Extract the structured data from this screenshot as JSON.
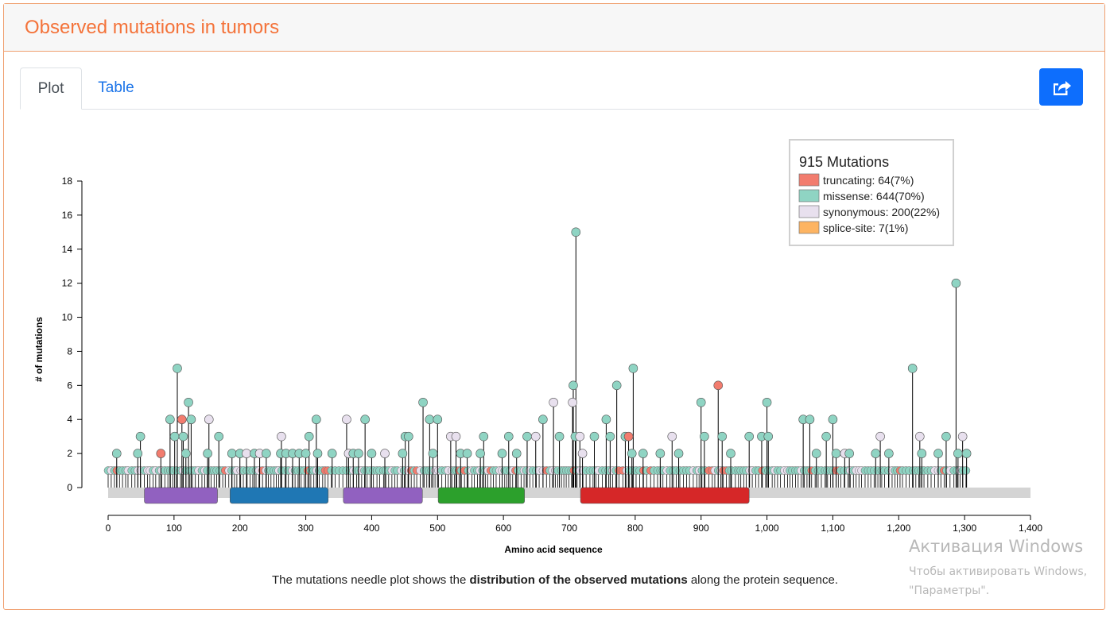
{
  "panel": {
    "title": "Observed mutations in tumors"
  },
  "tabs": [
    {
      "label": "Plot"
    },
    {
      "label": "Table"
    }
  ],
  "share_button": {
    "icon": "share-icon"
  },
  "caption": {
    "before": "The mutations needle plot shows the ",
    "bold": "distribution of the observed mutations",
    "after": " along the protein sequence."
  },
  "watermark": {
    "title": "Активация Windows",
    "line1": "Чтобы активировать Windows,",
    "line2": "\"Параметры\"."
  },
  "chart_data": {
    "type": "scatter",
    "subtype": "lollipop",
    "xlabel": "Amino acid sequence",
    "ylabel": "# of mutations",
    "xlim": [
      0,
      1400
    ],
    "ylim": [
      0,
      18
    ],
    "xticks": [
      "0",
      "100",
      "200",
      "300",
      "400",
      "500",
      "600",
      "700",
      "800",
      "900",
      "1,000",
      "1,100",
      "1,200",
      "1,300",
      "1,400"
    ],
    "yticks": [
      "0",
      "2",
      "4",
      "6",
      "8",
      "10",
      "12",
      "14",
      "16",
      "18"
    ],
    "legend": {
      "title": "915 Mutations",
      "position": "top-right",
      "items": [
        {
          "key": "truncating",
          "label": "truncating: 64(7%)",
          "color": "#f27c6e"
        },
        {
          "key": "missense",
          "label": "missense: 644(70%)",
          "color": "#8fd4c3"
        },
        {
          "key": "synonymous",
          "label": "synonymous: 200(22%)",
          "color": "#e8e0ee"
        },
        {
          "key": "splice",
          "label": "splice-site: 7(1%)",
          "color": "#fdb462"
        }
      ]
    },
    "protein_length": 1400,
    "domains": [
      {
        "start": 55,
        "end": 166,
        "color": "#9161c0"
      },
      {
        "start": 185,
        "end": 334,
        "color": "#1f77b4"
      },
      {
        "start": 357,
        "end": 477,
        "color": "#9161c0"
      },
      {
        "start": 501,
        "end": 632,
        "color": "#2ca02c"
      },
      {
        "start": 717,
        "end": 973,
        "color": "#d62728"
      }
    ],
    "mutations": [
      {
        "x": 13,
        "y": 2,
        "type": "missense"
      },
      {
        "x": 45,
        "y": 2,
        "type": "missense"
      },
      {
        "x": 49,
        "y": 3,
        "type": "missense"
      },
      {
        "x": 80,
        "y": 2,
        "type": "truncating"
      },
      {
        "x": 94,
        "y": 4,
        "type": "missense"
      },
      {
        "x": 101,
        "y": 3,
        "type": "missense"
      },
      {
        "x": 105,
        "y": 7,
        "type": "missense"
      },
      {
        "x": 112,
        "y": 4,
        "type": "truncating"
      },
      {
        "x": 114,
        "y": 3,
        "type": "missense"
      },
      {
        "x": 118,
        "y": 2,
        "type": "missense"
      },
      {
        "x": 122,
        "y": 5,
        "type": "missense"
      },
      {
        "x": 126,
        "y": 4,
        "type": "missense"
      },
      {
        "x": 153,
        "y": 4,
        "type": "synonymous"
      },
      {
        "x": 151,
        "y": 2,
        "type": "missense"
      },
      {
        "x": 168,
        "y": 3,
        "type": "missense"
      },
      {
        "x": 188,
        "y": 2,
        "type": "missense"
      },
      {
        "x": 200,
        "y": 2,
        "type": "missense"
      },
      {
        "x": 210,
        "y": 2,
        "type": "synonymous"
      },
      {
        "x": 222,
        "y": 2,
        "type": "missense"
      },
      {
        "x": 230,
        "y": 2,
        "type": "synonymous"
      },
      {
        "x": 240,
        "y": 2,
        "type": "missense"
      },
      {
        "x": 263,
        "y": 3,
        "type": "synonymous"
      },
      {
        "x": 262,
        "y": 2,
        "type": "missense"
      },
      {
        "x": 270,
        "y": 2,
        "type": "missense"
      },
      {
        "x": 280,
        "y": 2,
        "type": "missense"
      },
      {
        "x": 290,
        "y": 2,
        "type": "missense"
      },
      {
        "x": 300,
        "y": 2,
        "type": "missense"
      },
      {
        "x": 305,
        "y": 3,
        "type": "missense"
      },
      {
        "x": 316,
        "y": 4,
        "type": "missense"
      },
      {
        "x": 318,
        "y": 2,
        "type": "missense"
      },
      {
        "x": 340,
        "y": 2,
        "type": "missense"
      },
      {
        "x": 362,
        "y": 4,
        "type": "synonymous"
      },
      {
        "x": 365,
        "y": 2,
        "type": "synonymous"
      },
      {
        "x": 372,
        "y": 2,
        "type": "missense"
      },
      {
        "x": 380,
        "y": 2,
        "type": "missense"
      },
      {
        "x": 390,
        "y": 4,
        "type": "missense"
      },
      {
        "x": 400,
        "y": 2,
        "type": "missense"
      },
      {
        "x": 420,
        "y": 2,
        "type": "synonymous"
      },
      {
        "x": 447,
        "y": 2,
        "type": "missense"
      },
      {
        "x": 451,
        "y": 3,
        "type": "missense"
      },
      {
        "x": 456,
        "y": 3,
        "type": "missense"
      },
      {
        "x": 478,
        "y": 5,
        "type": "missense"
      },
      {
        "x": 488,
        "y": 4,
        "type": "missense"
      },
      {
        "x": 493,
        "y": 2,
        "type": "missense"
      },
      {
        "x": 500,
        "y": 4,
        "type": "missense"
      },
      {
        "x": 520,
        "y": 3,
        "type": "synonymous"
      },
      {
        "x": 528,
        "y": 3,
        "type": "synonymous"
      },
      {
        "x": 535,
        "y": 2,
        "type": "missense"
      },
      {
        "x": 545,
        "y": 2,
        "type": "missense"
      },
      {
        "x": 565,
        "y": 2,
        "type": "missense"
      },
      {
        "x": 570,
        "y": 3,
        "type": "missense"
      },
      {
        "x": 598,
        "y": 2,
        "type": "missense"
      },
      {
        "x": 608,
        "y": 3,
        "type": "missense"
      },
      {
        "x": 620,
        "y": 2,
        "type": "missense"
      },
      {
        "x": 636,
        "y": 3,
        "type": "missense"
      },
      {
        "x": 649,
        "y": 3,
        "type": "synonymous"
      },
      {
        "x": 660,
        "y": 4,
        "type": "missense"
      },
      {
        "x": 676,
        "y": 5,
        "type": "synonymous"
      },
      {
        "x": 685,
        "y": 3,
        "type": "missense"
      },
      {
        "x": 705,
        "y": 5,
        "type": "synonymous"
      },
      {
        "x": 706,
        "y": 6,
        "type": "missense"
      },
      {
        "x": 709,
        "y": 3,
        "type": "missense"
      },
      {
        "x": 710,
        "y": 15,
        "type": "missense"
      },
      {
        "x": 716,
        "y": 3,
        "type": "synonymous"
      },
      {
        "x": 720,
        "y": 2,
        "type": "synonymous"
      },
      {
        "x": 738,
        "y": 3,
        "type": "missense"
      },
      {
        "x": 756,
        "y": 4,
        "type": "missense"
      },
      {
        "x": 762,
        "y": 3,
        "type": "missense"
      },
      {
        "x": 772,
        "y": 6,
        "type": "missense"
      },
      {
        "x": 785,
        "y": 3,
        "type": "missense"
      },
      {
        "x": 790,
        "y": 3,
        "type": "truncating"
      },
      {
        "x": 797,
        "y": 7,
        "type": "missense"
      },
      {
        "x": 795,
        "y": 2,
        "type": "missense"
      },
      {
        "x": 812,
        "y": 2,
        "type": "missense"
      },
      {
        "x": 838,
        "y": 2,
        "type": "missense"
      },
      {
        "x": 856,
        "y": 3,
        "type": "synonymous"
      },
      {
        "x": 866,
        "y": 2,
        "type": "missense"
      },
      {
        "x": 900,
        "y": 5,
        "type": "missense"
      },
      {
        "x": 905,
        "y": 3,
        "type": "missense"
      },
      {
        "x": 926,
        "y": 6,
        "type": "truncating"
      },
      {
        "x": 932,
        "y": 3,
        "type": "missense"
      },
      {
        "x": 945,
        "y": 2,
        "type": "missense"
      },
      {
        "x": 973,
        "y": 3,
        "type": "missense"
      },
      {
        "x": 992,
        "y": 3,
        "type": "missense"
      },
      {
        "x": 1000,
        "y": 5,
        "type": "missense"
      },
      {
        "x": 1002,
        "y": 3,
        "type": "missense"
      },
      {
        "x": 1055,
        "y": 4,
        "type": "missense"
      },
      {
        "x": 1065,
        "y": 4,
        "type": "missense"
      },
      {
        "x": 1075,
        "y": 2,
        "type": "missense"
      },
      {
        "x": 1090,
        "y": 3,
        "type": "missense"
      },
      {
        "x": 1100,
        "y": 4,
        "type": "missense"
      },
      {
        "x": 1105,
        "y": 2,
        "type": "missense"
      },
      {
        "x": 1118,
        "y": 2,
        "type": "synonymous"
      },
      {
        "x": 1125,
        "y": 2,
        "type": "missense"
      },
      {
        "x": 1165,
        "y": 2,
        "type": "missense"
      },
      {
        "x": 1172,
        "y": 3,
        "type": "synonymous"
      },
      {
        "x": 1185,
        "y": 2,
        "type": "missense"
      },
      {
        "x": 1221,
        "y": 7,
        "type": "missense"
      },
      {
        "x": 1232,
        "y": 3,
        "type": "synonymous"
      },
      {
        "x": 1235,
        "y": 2,
        "type": "missense"
      },
      {
        "x": 1260,
        "y": 2,
        "type": "missense"
      },
      {
        "x": 1272,
        "y": 3,
        "type": "missense"
      },
      {
        "x": 1287,
        "y": 12,
        "type": "missense"
      },
      {
        "x": 1290,
        "y": 2,
        "type": "missense"
      },
      {
        "x": 1297,
        "y": 3,
        "type": "synonymous"
      },
      {
        "x": 1303,
        "y": 2,
        "type": "missense"
      }
    ]
  }
}
